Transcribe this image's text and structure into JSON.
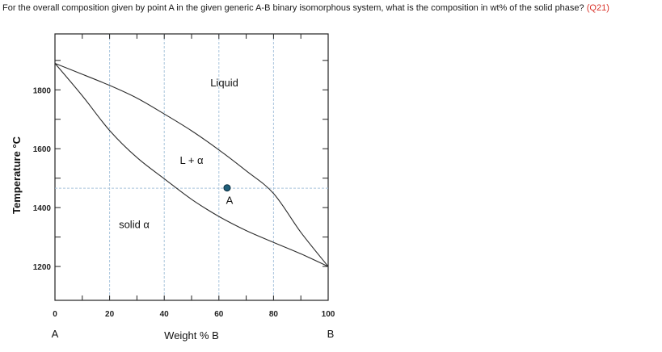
{
  "question": {
    "text": "For the overall composition given by point A in the given generic A-B binary isomorphous system, what is the composition in wt% of the solid phase?",
    "ref": "(Q21)"
  },
  "chart_data": {
    "type": "line",
    "xlabel": "Weight % B",
    "ylabel": "Temperature °C",
    "xlim": [
      0,
      100
    ],
    "ylim": [
      1085,
      1990
    ],
    "x_ticks": [
      0,
      20,
      40,
      60,
      80,
      100
    ],
    "x_tick_labels": [
      "0",
      "20",
      "40",
      "60",
      "80",
      "100"
    ],
    "y_ticks": [
      1200,
      1400,
      1600,
      1800
    ],
    "y_tick_labels": [
      "1200",
      "1400",
      "1600",
      "1800"
    ],
    "x_minor_ticks": [
      10,
      30,
      50,
      70,
      90
    ],
    "y_minor_ticks": [
      1300,
      1500,
      1700,
      1900
    ],
    "endpoint_labels": {
      "left": "A",
      "right": "B"
    },
    "grid": {
      "x": [
        20,
        40,
        60,
        80
      ],
      "y": [
        1466
      ]
    },
    "series": [
      {
        "role": "liquidus",
        "x": [
          0,
          10,
          20,
          30,
          40,
          50,
          60,
          70,
          80,
          90,
          100
        ],
        "y": [
          1890,
          1853,
          1815,
          1772,
          1718,
          1661,
          1596,
          1525,
          1448,
          1316,
          1200
        ]
      },
      {
        "role": "solidus",
        "x": [
          0,
          10,
          20,
          30,
          40,
          50,
          60,
          70,
          80,
          90,
          100
        ],
        "y": [
          1890,
          1780,
          1662,
          1570,
          1498,
          1428,
          1370,
          1322,
          1282,
          1243,
          1200
        ]
      }
    ],
    "point": {
      "label": "A",
      "x": 63,
      "y": 1467,
      "color": "#1f5f7a"
    },
    "region_labels": [
      {
        "text": "Liquid",
        "x": 62,
        "y": 1812
      },
      {
        "text": "L + α",
        "x": 50,
        "y": 1548
      },
      {
        "text": "solid α",
        "x": 29,
        "y": 1330
      }
    ]
  }
}
